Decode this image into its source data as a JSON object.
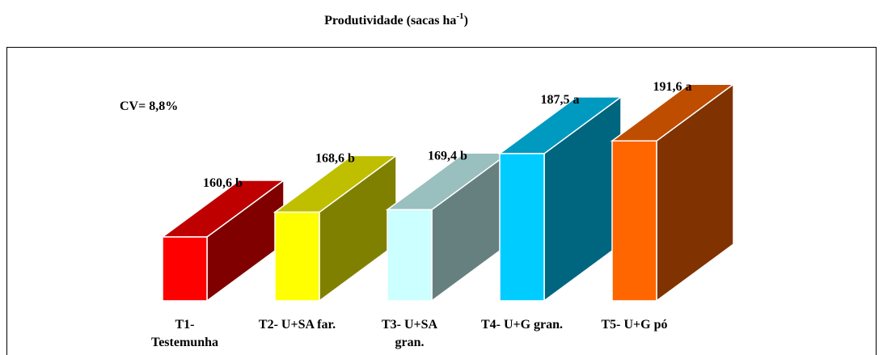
{
  "chart_data": {
    "type": "bar3d",
    "title": [
      "Produtividade (sacas ha",
      "-1",
      ")"
    ],
    "annotation": "CV= 8,8%",
    "categories": [
      [
        "T1-",
        "Testemunha"
      ],
      [
        "T2- U+SA far."
      ],
      [
        "T3- U+SA",
        "gran."
      ],
      [
        "T4- U+G gran."
      ],
      [
        "T5- U+G pó"
      ]
    ],
    "values": [
      160.6,
      168.6,
      169.4,
      187.5,
      191.6
    ],
    "value_labels": [
      "160,6 b",
      "168,6 b",
      "169,4 b",
      "187,5 a",
      "191,6 a"
    ],
    "colors": [
      "#ff0000",
      "#ffff00",
      "#ccffff",
      "#00ccff",
      "#ff6600"
    ],
    "ylim": [
      140,
      200
    ]
  }
}
